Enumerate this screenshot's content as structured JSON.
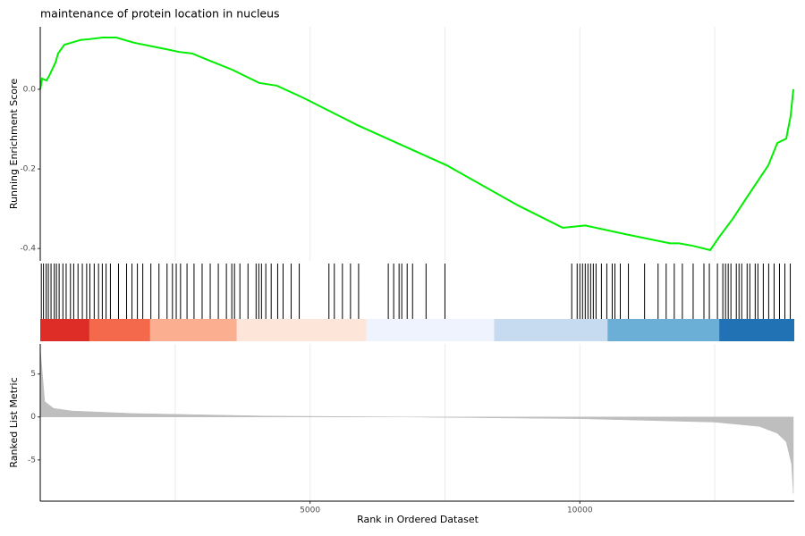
{
  "chart_data": [
    {
      "type": "line",
      "title": "maintenance of protein location in nucleus",
      "ylabel": "Running Enrichment Score",
      "color": "#00ee00",
      "x": [
        0,
        33,
        116,
        166,
        281,
        331,
        447,
        579,
        745,
        911,
        1159,
        1407,
        1738,
        2070,
        2401,
        2566,
        2815,
        3063,
        3560,
        4056,
        4387,
        4884,
        5877,
        7533,
        8858,
        9685,
        10099,
        10844,
        11672,
        11838,
        12086,
        12417,
        12583,
        12831,
        13162,
        13493,
        13659,
        13825,
        13907,
        13957
      ],
      "values": [
        0,
        0.027,
        0.022,
        0.034,
        0.067,
        0.09,
        0.112,
        0.117,
        0.124,
        0.126,
        0.13,
        0.13,
        0.117,
        0.108,
        0.099,
        0.094,
        0.09,
        0.076,
        0.049,
        0.016,
        0.009,
        -0.022,
        -0.09,
        -0.191,
        -0.292,
        -0.348,
        -0.342,
        -0.364,
        -0.387,
        -0.387,
        -0.393,
        -0.404,
        -0.371,
        -0.326,
        -0.258,
        -0.191,
        -0.135,
        -0.124,
        -0.067,
        0
      ],
      "xlim": [
        0,
        13974
      ],
      "ylim": [
        -0.431,
        0.157
      ],
      "yticks": [
        {
          "value": 0,
          "label": "0.0"
        },
        -0.2,
        -0.4
      ],
      "xgrid": [
        2500,
        5000,
        7500,
        10000,
        12500
      ]
    },
    {
      "type": "rug",
      "color": "#000000",
      "xlim": [
        0,
        13974
      ],
      "values": [
        20,
        60,
        110,
        150,
        200,
        260,
        300,
        350,
        420,
        480,
        560,
        620,
        700,
        780,
        860,
        920,
        1000,
        1080,
        1150,
        1220,
        1300,
        1450,
        1600,
        1700,
        1800,
        1900,
        2050,
        2200,
        2350,
        2450,
        2520,
        2600,
        2720,
        2850,
        3000,
        3150,
        3300,
        3450,
        3550,
        3600,
        3700,
        3850,
        4000,
        4050,
        4100,
        4180,
        4280,
        4400,
        4500,
        4650,
        4800,
        5350,
        5450,
        5600,
        5750,
        5900,
        6450,
        6550,
        6650,
        6700,
        6800,
        6900,
        7150,
        7500,
        9850,
        9950,
        10000,
        10050,
        10100,
        10150,
        10200,
        10250,
        10300,
        10400,
        10500,
        10600,
        10650,
        10750,
        10900,
        11200,
        11450,
        11600,
        11750,
        11900,
        12100,
        12300,
        12400,
        12550,
        12650,
        12700,
        12750,
        12800,
        12900,
        12950,
        13000,
        13100,
        13150,
        13250,
        13300,
        13400,
        13500,
        13600,
        13700,
        13800,
        13900
      ],
      "bands": [
        {
          "start": 0,
          "end": 911,
          "color": "#de2d26"
        },
        {
          "start": 911,
          "end": 2037,
          "color": "#f4694c"
        },
        {
          "start": 2037,
          "end": 3643,
          "color": "#fcae91"
        },
        {
          "start": 3643,
          "end": 6044,
          "color": "#fee5d9"
        },
        {
          "start": 6044,
          "end": 8412,
          "color": "#eef3fd"
        },
        {
          "start": 8412,
          "end": 10513,
          "color": "#c6dbef"
        },
        {
          "start": 10513,
          "end": 12583,
          "color": "#6baed6"
        },
        {
          "start": 12583,
          "end": 13974,
          "color": "#2171b5"
        }
      ]
    },
    {
      "type": "area",
      "ylabel": "Ranked List Metric",
      "xlabel": "Rank in Ordered Dataset",
      "color": "#bebebe",
      "x": [
        0,
        83,
        248,
        579,
        1738,
        2566,
        4222,
        6707,
        10016,
        12500,
        13328,
        13659,
        13825,
        13924,
        13957
      ],
      "values": [
        8.0,
        1.8,
        1.0,
        0.7,
        0.4,
        0.3,
        0.1,
        0,
        -0.2,
        -0.6,
        -1.1,
        -1.9,
        -2.9,
        -5.5,
        -8.9
      ],
      "xlim": [
        0,
        13974
      ],
      "ylim": [
        -9.8,
        8.5
      ],
      "yticks": [
        5,
        0,
        -5
      ],
      "xticks": [
        5000,
        10000
      ],
      "xgrid": [
        2500,
        5000,
        7500,
        10000,
        12500
      ]
    }
  ]
}
